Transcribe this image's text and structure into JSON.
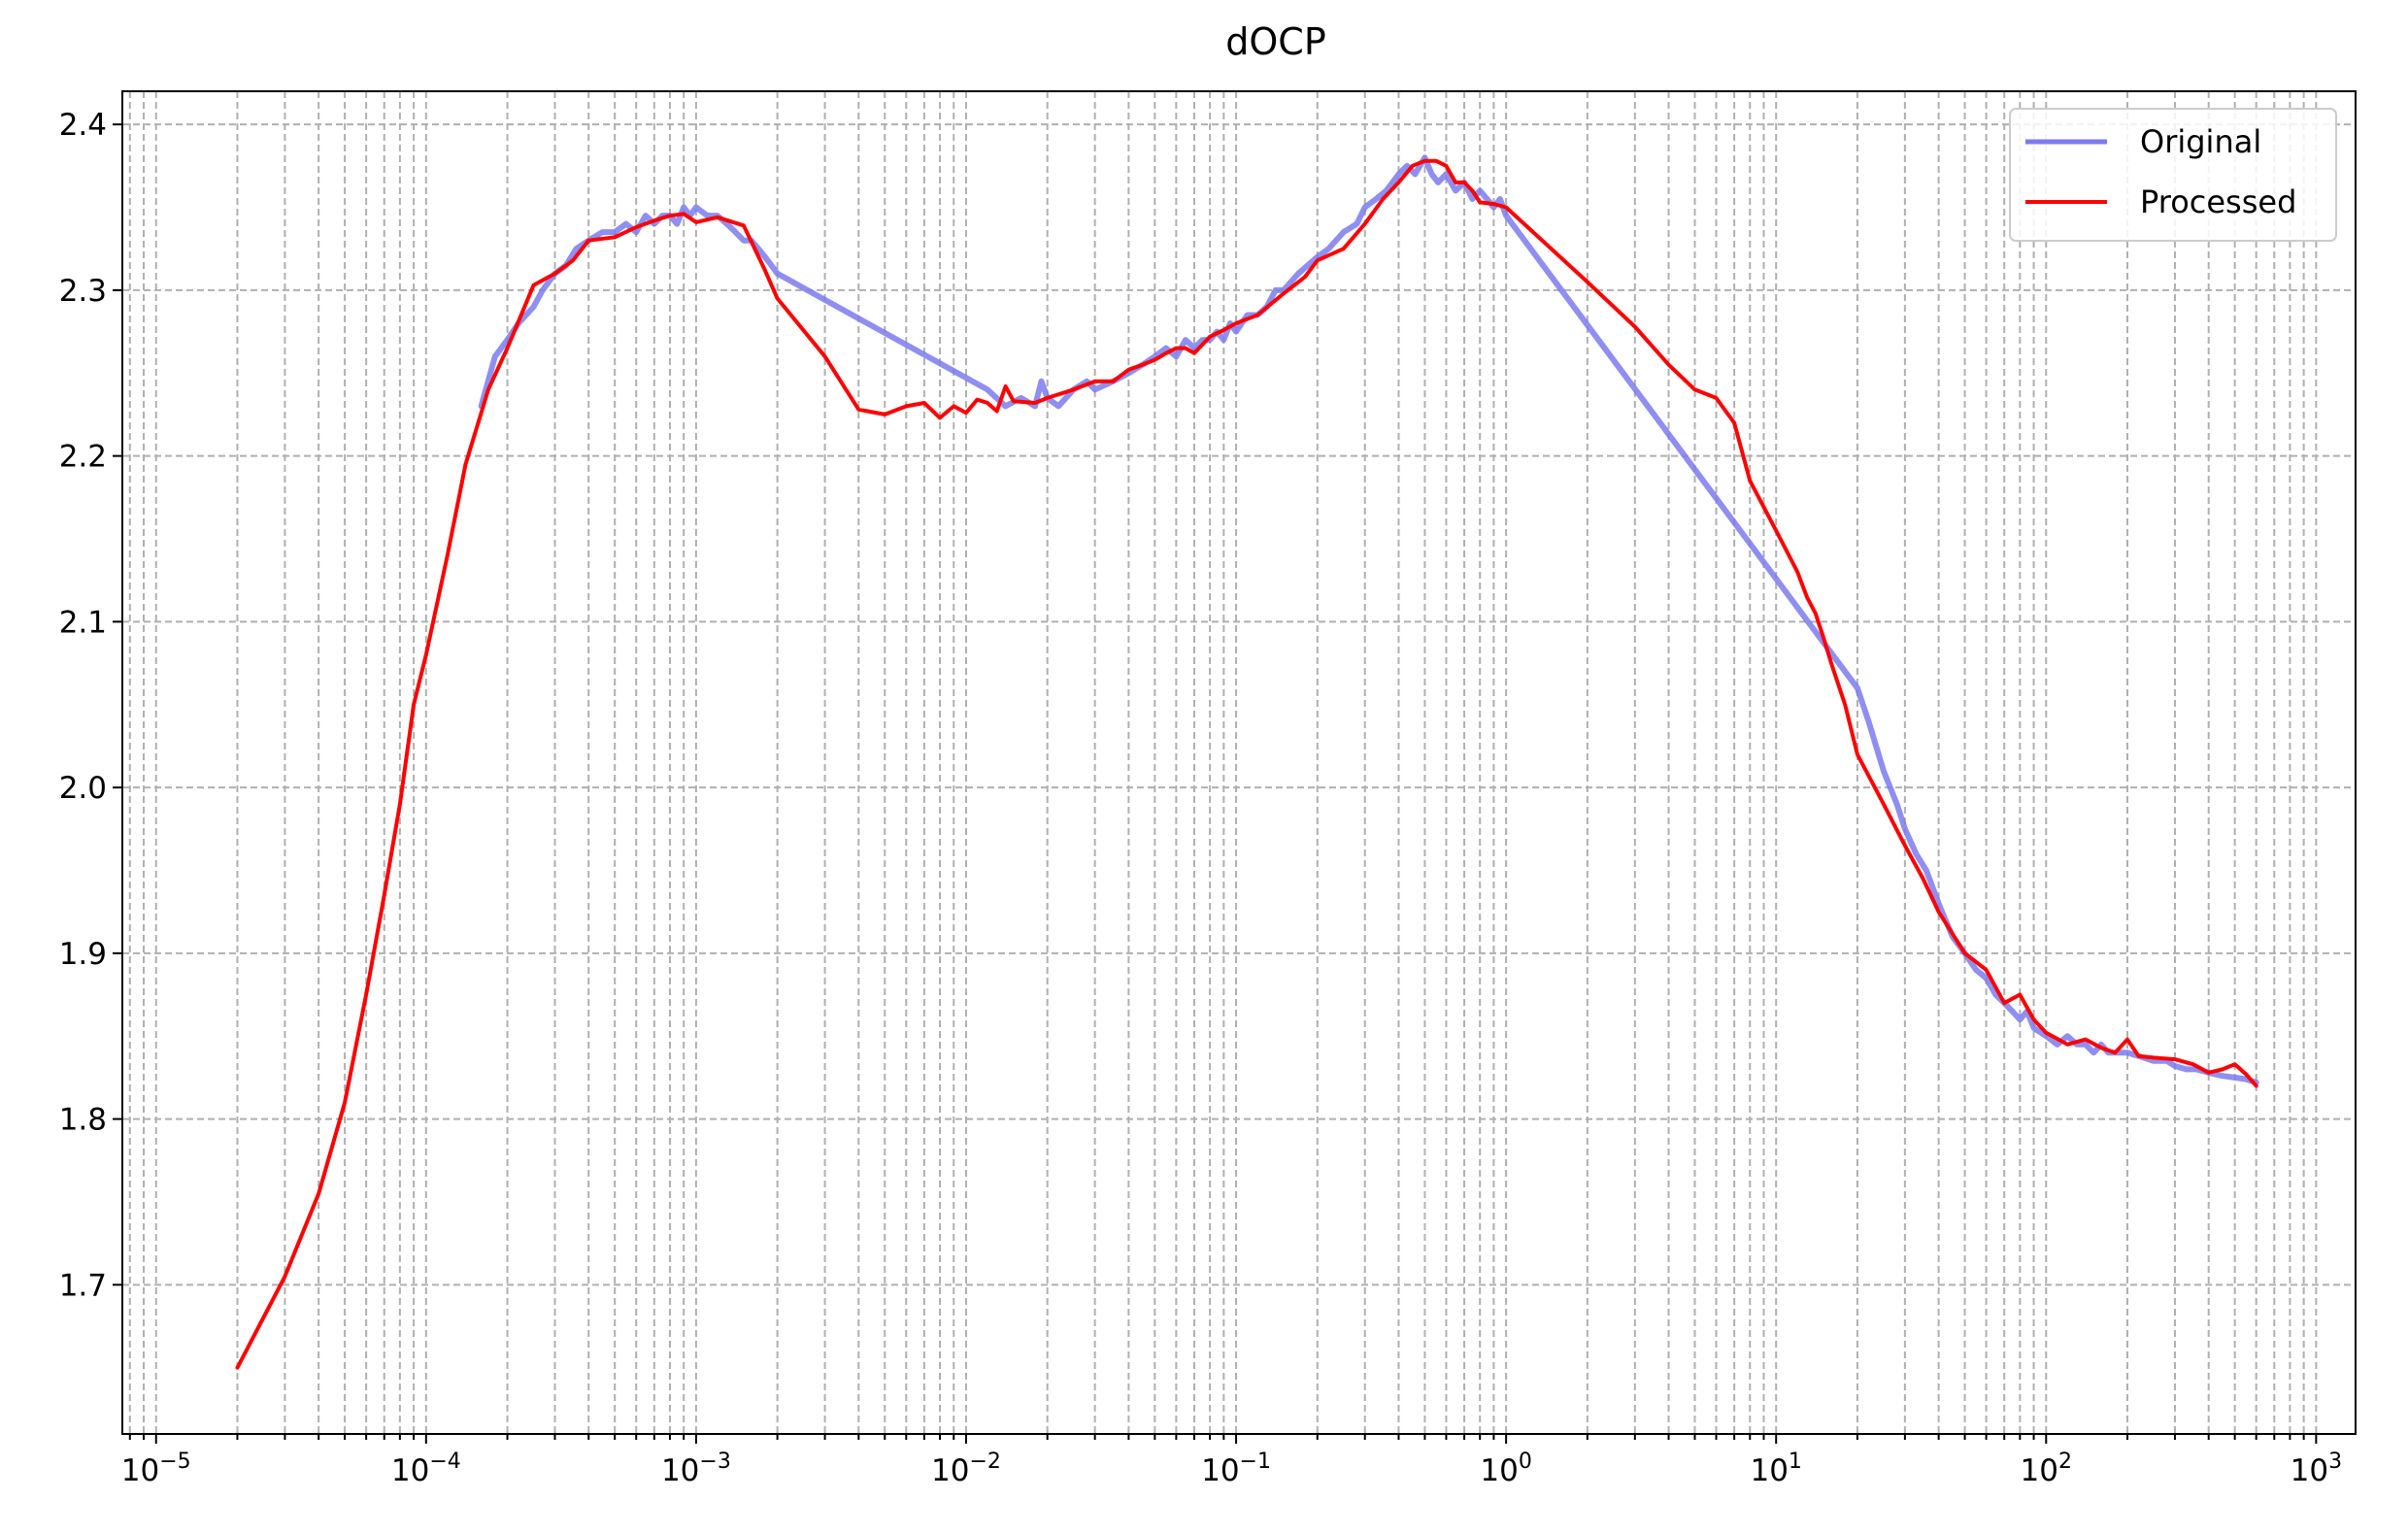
{
  "chart_data": {
    "type": "line",
    "title": "dOCP",
    "xlabel": "",
    "ylabel": "",
    "x_scale": "log",
    "xlim": [
      7.5e-06,
      1400
    ],
    "ylim": [
      1.61,
      2.42
    ],
    "grid": true,
    "legend_position": "top-right",
    "x_ticks": [
      {
        "value": 1e-05,
        "base": "10",
        "exp": "−5"
      },
      {
        "value": 0.0001,
        "base": "10",
        "exp": "−4"
      },
      {
        "value": 0.001,
        "base": "10",
        "exp": "−3"
      },
      {
        "value": 0.01,
        "base": "10",
        "exp": "−2"
      },
      {
        "value": 0.1,
        "base": "10",
        "exp": "−1"
      },
      {
        "value": 1,
        "base": "10",
        "exp": "0"
      },
      {
        "value": 10,
        "base": "10",
        "exp": "1"
      },
      {
        "value": 100,
        "base": "10",
        "exp": "2"
      },
      {
        "value": 1000,
        "base": "10",
        "exp": "3"
      }
    ],
    "y_ticks": [
      {
        "value": 1.7,
        "label": "1.7"
      },
      {
        "value": 1.8,
        "label": "1.8"
      },
      {
        "value": 1.9,
        "label": "1.9"
      },
      {
        "value": 2.0,
        "label": "2.0"
      },
      {
        "value": 2.1,
        "label": "2.1"
      },
      {
        "value": 2.2,
        "label": "2.2"
      },
      {
        "value": 2.3,
        "label": "2.3"
      },
      {
        "value": 2.4,
        "label": "2.4"
      }
    ],
    "series": [
      {
        "name": "Original",
        "color": "#7b7bf0",
        "x": [
          0.00016,
          0.00018,
          0.0002,
          0.00022,
          0.00025,
          0.00027,
          0.0003,
          0.00033,
          0.00036,
          0.0004,
          0.00045,
          0.0005,
          0.00055,
          0.0006,
          0.00065,
          0.0007,
          0.00075,
          0.0008,
          0.00085,
          0.0009,
          0.00095,
          0.001,
          0.0011,
          0.0012,
          0.0013,
          0.0014,
          0.0015,
          0.0016,
          0.0017,
          0.0018,
          0.0019,
          0.002,
          0.012,
          0.014,
          0.016,
          0.018,
          0.019,
          0.02,
          0.022,
          0.025,
          0.028,
          0.03,
          0.035,
          0.04,
          0.045,
          0.05,
          0.055,
          0.06,
          0.065,
          0.07,
          0.075,
          0.08,
          0.085,
          0.09,
          0.095,
          0.1,
          0.11,
          0.12,
          0.13,
          0.14,
          0.15,
          0.17,
          0.2,
          0.22,
          0.25,
          0.28,
          0.3,
          0.33,
          0.36,
          0.4,
          0.43,
          0.46,
          0.5,
          0.53,
          0.56,
          0.6,
          0.65,
          0.7,
          0.75,
          0.8,
          0.85,
          0.9,
          0.95,
          1.0,
          20,
          22,
          25,
          28,
          30,
          33,
          36,
          40,
          45,
          50,
          55,
          60,
          65,
          70,
          75,
          80,
          85,
          90,
          100,
          110,
          120,
          130,
          140,
          150,
          160,
          170,
          180,
          200,
          220,
          250,
          280,
          300,
          330,
          360,
          400,
          450,
          500,
          550,
          600
        ],
        "y": [
          2.23,
          2.26,
          2.27,
          2.28,
          2.29,
          2.3,
          2.31,
          2.315,
          2.325,
          2.33,
          2.335,
          2.335,
          2.34,
          2.335,
          2.345,
          2.34,
          2.345,
          2.345,
          2.34,
          2.35,
          2.345,
          2.35,
          2.345,
          2.345,
          2.34,
          2.335,
          2.33,
          2.33,
          2.325,
          2.32,
          2.315,
          2.31,
          2.24,
          2.23,
          2.235,
          2.23,
          2.245,
          2.235,
          2.23,
          2.24,
          2.245,
          2.24,
          2.245,
          2.25,
          2.255,
          2.26,
          2.265,
          2.26,
          2.27,
          2.265,
          2.27,
          2.27,
          2.275,
          2.27,
          2.28,
          2.275,
          2.285,
          2.285,
          2.29,
          2.3,
          2.3,
          2.31,
          2.32,
          2.325,
          2.335,
          2.34,
          2.35,
          2.355,
          2.36,
          2.37,
          2.375,
          2.37,
          2.38,
          2.37,
          2.365,
          2.37,
          2.36,
          2.365,
          2.355,
          2.36,
          2.355,
          2.35,
          2.355,
          2.345,
          2.06,
          2.04,
          2.01,
          1.99,
          1.975,
          1.96,
          1.95,
          1.93,
          1.91,
          1.9,
          1.89,
          1.885,
          1.875,
          1.87,
          1.865,
          1.86,
          1.865,
          1.855,
          1.85,
          1.845,
          1.85,
          1.845,
          1.845,
          1.84,
          1.845,
          1.84,
          1.84,
          1.84,
          1.838,
          1.835,
          1.835,
          1.832,
          1.83,
          1.83,
          1.828,
          1.826,
          1.825,
          1.824,
          1.822
        ]
      },
      {
        "name": "Processed",
        "color": "#ff0000",
        "x": [
          2e-05,
          3e-05,
          4e-05,
          5e-05,
          6e-05,
          7e-05,
          8e-05,
          9e-05,
          0.0001,
          0.00012,
          0.00014,
          0.00017,
          0.0002,
          0.00025,
          0.0003,
          0.00035,
          0.0004,
          0.0005,
          0.0006,
          0.0007,
          0.0008,
          0.0009,
          0.001,
          0.0012,
          0.0015,
          0.0018,
          0.002,
          0.003,
          0.004,
          0.005,
          0.006,
          0.007,
          0.008,
          0.009,
          0.01,
          0.011,
          0.012,
          0.013,
          0.014,
          0.015,
          0.018,
          0.02,
          0.025,
          0.03,
          0.035,
          0.04,
          0.045,
          0.05,
          0.055,
          0.06,
          0.065,
          0.07,
          0.08,
          0.09,
          0.1,
          0.12,
          0.15,
          0.18,
          0.2,
          0.25,
          0.3,
          0.35,
          0.4,
          0.45,
          0.5,
          0.55,
          0.6,
          0.65,
          0.7,
          0.75,
          0.8,
          0.9,
          1.0,
          2.0,
          3.0,
          4.0,
          5.0,
          6.0,
          7.0,
          8.0,
          10.0,
          12.0,
          13.0,
          14.0,
          15.0,
          16.0,
          18.0,
          20.0,
          25.0,
          30.0,
          35.0,
          40.0,
          50.0,
          60.0,
          70.0,
          80.0,
          90.0,
          100.0,
          120.0,
          140.0,
          160.0,
          180.0,
          200.0,
          220.0,
          250.0,
          300.0,
          350.0,
          400.0,
          450.0,
          500.0,
          550.0,
          600.0
        ],
        "y": [
          1.65,
          1.705,
          1.755,
          1.81,
          1.875,
          1.935,
          1.99,
          2.05,
          2.08,
          2.14,
          2.195,
          2.24,
          2.265,
          2.303,
          2.31,
          2.318,
          2.33,
          2.332,
          2.338,
          2.342,
          2.345,
          2.346,
          2.341,
          2.344,
          2.339,
          2.312,
          2.295,
          2.26,
          2.228,
          2.225,
          2.23,
          2.232,
          2.223,
          2.23,
          2.226,
          2.234,
          2.232,
          2.227,
          2.242,
          2.233,
          2.232,
          2.235,
          2.24,
          2.245,
          2.245,
          2.252,
          2.255,
          2.258,
          2.262,
          2.265,
          2.265,
          2.262,
          2.272,
          2.276,
          2.28,
          2.285,
          2.298,
          2.308,
          2.318,
          2.325,
          2.34,
          2.355,
          2.365,
          2.375,
          2.378,
          2.378,
          2.375,
          2.365,
          2.365,
          2.36,
          2.353,
          2.352,
          2.35,
          2.305,
          2.278,
          2.255,
          2.24,
          2.235,
          2.22,
          2.185,
          2.155,
          2.13,
          2.115,
          2.105,
          2.09,
          2.075,
          2.05,
          2.02,
          1.99,
          1.965,
          1.945,
          1.925,
          1.9,
          1.89,
          1.87,
          1.875,
          1.86,
          1.852,
          1.845,
          1.848,
          1.843,
          1.84,
          1.848,
          1.838,
          1.837,
          1.836,
          1.833,
          1.828,
          1.83,
          1.833,
          1.827,
          1.82
        ]
      }
    ]
  }
}
